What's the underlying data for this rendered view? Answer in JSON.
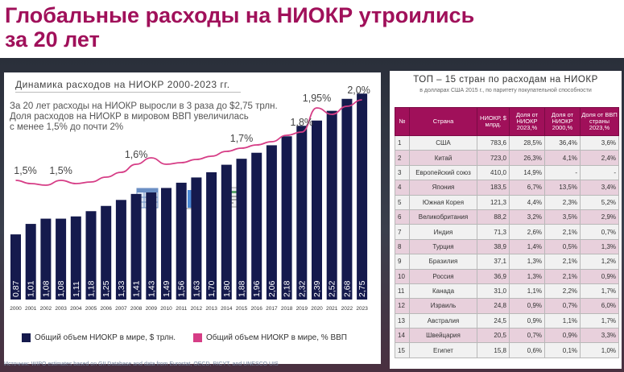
{
  "page": {
    "title_line1": "Глобальные расходы на НИОКР утроились",
    "title_line2": "за 20 лет",
    "source": "Источник: WIPO estimates based on GII Database and data from Eurostat, OECD, RICYT, and UNESCO UIS"
  },
  "left": {
    "title": "Динамика расходов на НИОКР 2000-2023 гг.",
    "desc": [
      "За 20 лет расходы на НИОКР выросли в 3 раза до $2,75 трлн.",
      "Доля расходов на НИОКР в мировом ВВП увеличилась",
      "с менее 1,5% до почти 2%"
    ],
    "legend_bar": "Общий объем НИОКР в мире, $ трлн.",
    "legend_line": "Общий объем НИОКР в мире, % ВВП"
  },
  "colors": {
    "bar": "#151a4d",
    "line": "#d63d86",
    "accent": "#a0105a",
    "header": "#a0105a"
  },
  "icons": [
    "table-icon",
    "bar-chart-icon",
    "document-icon"
  ],
  "chart_data": [
    {
      "type": "bar",
      "categories": [
        "2000",
        "2001",
        "2002",
        "2003",
        "2004",
        "2005",
        "2006",
        "2007",
        "2008",
        "2009",
        "2010",
        "2011",
        "2012",
        "2013",
        "2014",
        "2015",
        "2016",
        "2017",
        "2018",
        "2019",
        "2020",
        "2021",
        "2022",
        "2023"
      ],
      "series": [
        {
          "name": "Общий объем НИОКР в мире, $ трлн.",
          "values": [
            0.87,
            1.01,
            1.08,
            1.08,
            1.11,
            1.18,
            1.25,
            1.33,
            1.41,
            1.43,
            1.49,
            1.56,
            1.63,
            1.7,
            1.8,
            1.88,
            1.96,
            2.06,
            2.18,
            2.32,
            2.39,
            2.52,
            2.68,
            2.75
          ],
          "labels": [
            "0,87",
            "1,01",
            "1,08",
            "1,08",
            "1,11",
            "1,18",
            "1,25",
            "1,33",
            "1,41",
            "1,43",
            "1,49",
            "1,56",
            "1,63",
            "1,70",
            "1,80",
            "1,88",
            "1,96",
            "2,06",
            "2,18",
            "2,32",
            "2,39",
            "2,52",
            "2,68",
            "2,75"
          ]
        },
        {
          "name": "Общий объем НИОКР в мире, % ВВП",
          "type": "line",
          "values": [
            1.5,
            1.48,
            1.47,
            1.5,
            1.48,
            1.49,
            1.52,
            1.55,
            1.6,
            1.64,
            1.6,
            1.61,
            1.63,
            1.65,
            1.68,
            1.7,
            1.72,
            1.74,
            1.78,
            1.8,
            1.95,
            1.91,
            1.96,
            2.0
          ]
        }
      ],
      "annotations": [
        {
          "year": "2000",
          "text": "1,5%"
        },
        {
          "year": "2003",
          "text": "1,5%"
        },
        {
          "year": "2008",
          "text": "1,6%"
        },
        {
          "year": "2015",
          "text": "1,7%"
        },
        {
          "year": "2019",
          "text": "1,8%"
        },
        {
          "year": "2020",
          "text": "1,95%"
        },
        {
          "year": "2023",
          "text": "2,0%"
        }
      ]
    },
    {
      "type": "table",
      "title": "ТОП – 15 стран по расходам на НИОКР",
      "subtitle": "в долларах США 2015 г., по паритету покупательной способности",
      "columns": [
        "№",
        "Страна",
        "НИОКР, $ млрд.",
        "Доля от НИОКР 2023,%",
        "Доля от НИОКР 2000,%",
        "Доля от ВВП страны 2023,%"
      ],
      "rows": [
        [
          "1",
          "США",
          "783,6",
          "28,5%",
          "36,4%",
          "3,6%"
        ],
        [
          "2",
          "Китай",
          "723,0",
          "26,3%",
          "4,1%",
          "2,4%"
        ],
        [
          "3",
          "Европейский союз",
          "410,0",
          "14,9%",
          "-",
          "-"
        ],
        [
          "4",
          "Япония",
          "183,5",
          "6,7%",
          "13,5%",
          "3,4%"
        ],
        [
          "5",
          "Южная Корея",
          "121,3",
          "4,4%",
          "2,3%",
          "5,2%"
        ],
        [
          "6",
          "Великобритания",
          "88,2",
          "3,2%",
          "3,5%",
          "2,9%"
        ],
        [
          "7",
          "Индия",
          "71,3",
          "2,6%",
          "2,1%",
          "0,7%"
        ],
        [
          "8",
          "Турция",
          "38,9",
          "1,4%",
          "0,5%",
          "1,3%"
        ],
        [
          "9",
          "Бразилия",
          "37,1",
          "1,3%",
          "2,1%",
          "1,2%"
        ],
        [
          "10",
          "Россия",
          "36,9",
          "1,3%",
          "2,1%",
          "0,9%"
        ],
        [
          "11",
          "Канада",
          "31,0",
          "1,1%",
          "2,2%",
          "1,7%"
        ],
        [
          "12",
          "Израиль",
          "24,8",
          "0,9%",
          "0,7%",
          "6,0%"
        ],
        [
          "13",
          "Австралия",
          "24,5",
          "0,9%",
          "1,1%",
          "1,7%"
        ],
        [
          "14",
          "Швейцария",
          "20,5",
          "0,7%",
          "0,9%",
          "3,3%"
        ],
        [
          "15",
          "Египет",
          "15,8",
          "0,6%",
          "0,1%",
          "1,0%"
        ]
      ]
    }
  ]
}
